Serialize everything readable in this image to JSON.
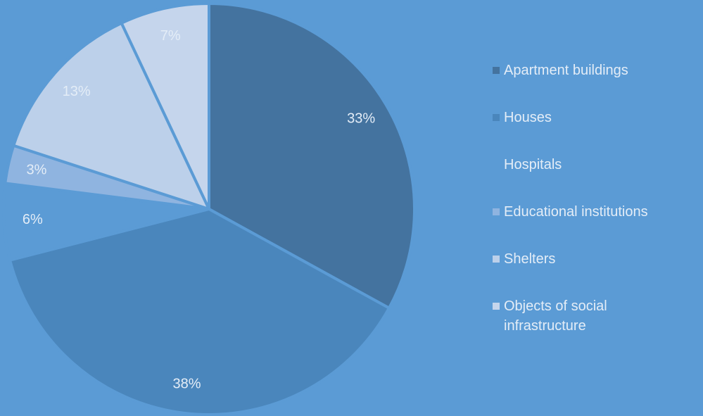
{
  "chart_data": {
    "type": "pie",
    "categories": [
      "Apartment buildings",
      "Houses",
      "Hospitals",
      "Educational institutions",
      "Shelters",
      "Objects of social infrastructure"
    ],
    "values": [
      33,
      38,
      6,
      3,
      13,
      7
    ],
    "value_labels": [
      "33%",
      "38%",
      "6%",
      "3%",
      "13%",
      "7%"
    ],
    "colors": [
      "#44739f",
      "#4a86bc",
      "#5b9bd5",
      "#8fb4e0",
      "#bcd0ea",
      "#c5d5ec"
    ]
  }
}
